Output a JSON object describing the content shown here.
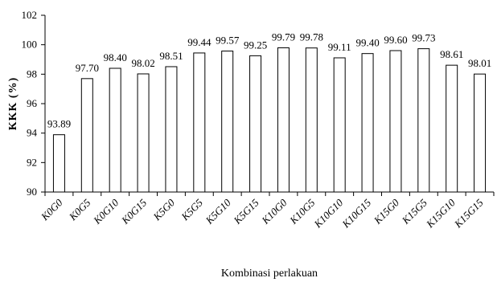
{
  "chart_data": {
    "type": "bar",
    "categories": [
      "K0G0",
      "K0G5",
      "K0G10",
      "K0G15",
      "K5G0",
      "K5G5",
      "K5G10",
      "K5G15",
      "K10G0",
      "K10G5",
      "K10G10",
      "K10G15",
      "K15G0",
      "K15G5",
      "K15G10",
      "K15G15"
    ],
    "values": [
      93.89,
      97.7,
      98.4,
      98.02,
      98.51,
      99.44,
      99.57,
      99.25,
      99.79,
      99.78,
      99.11,
      99.4,
      99.6,
      99.73,
      98.61,
      98.01
    ],
    "data_labels": [
      "93.89",
      "97.70",
      "98.40",
      "98.02",
      "98.51",
      "99.44",
      "99.57",
      "99.25",
      "99.79",
      "99.78",
      "99.11",
      "99.40",
      "99.60",
      "99.73",
      "98.61",
      "98.01"
    ],
    "xlabel": "Kombinasi perlakuan",
    "ylabel": "KKK (%)",
    "ylim": [
      90,
      102
    ],
    "yticks": [
      90,
      92,
      94,
      96,
      98,
      100,
      102
    ],
    "grid": false,
    "legend": "none",
    "bar_fill": "#ffffff",
    "bar_stroke": "#000000"
  }
}
